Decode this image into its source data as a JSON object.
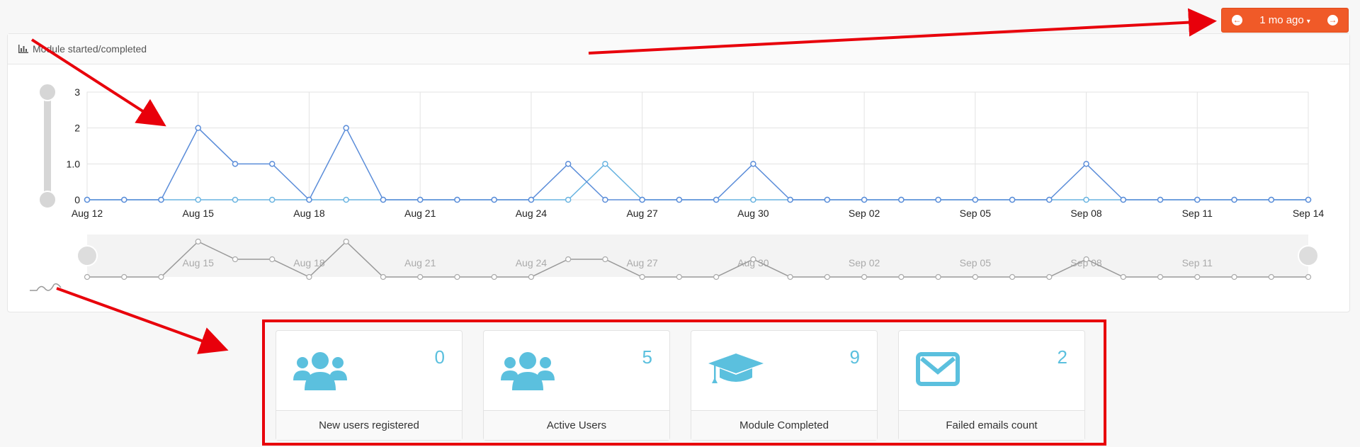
{
  "toolbar": {
    "range_label": "1 mo ago"
  },
  "panel": {
    "title": "Module started/completed"
  },
  "chart_data": {
    "type": "line",
    "title": "Module started/completed",
    "x": [
      "Aug 12",
      "Aug 13",
      "Aug 14",
      "Aug 15",
      "Aug 16",
      "Aug 17",
      "Aug 18",
      "Aug 19",
      "Aug 20",
      "Aug 21",
      "Aug 22",
      "Aug 23",
      "Aug 24",
      "Aug 25",
      "Aug 26",
      "Aug 27",
      "Aug 28",
      "Aug 29",
      "Aug 30",
      "Aug 31",
      "Sep 01",
      "Sep 02",
      "Sep 03",
      "Sep 04",
      "Sep 05",
      "Sep 06",
      "Sep 07",
      "Sep 08",
      "Sep 09",
      "Sep 10",
      "Sep 11",
      "Sep 12",
      "Sep 13",
      "Sep 14"
    ],
    "x_tick_labels": [
      "Aug 12",
      "Aug 15",
      "Aug 18",
      "Aug 21",
      "Aug 24",
      "Aug 27",
      "Aug 30",
      "Sep 02",
      "Sep 05",
      "Sep 08",
      "Sep 11",
      "Sep 14"
    ],
    "navigator_tick_labels": [
      "Aug 15",
      "Aug 18",
      "Aug 21",
      "Aug 24",
      "Aug 27",
      "Aug 30",
      "Sep 02",
      "Sep 05",
      "Sep 08",
      "Sep 11"
    ],
    "y_tick_labels": [
      "0",
      "1.0",
      "2",
      "3"
    ],
    "ylim": [
      0,
      3
    ],
    "grid": true,
    "series": [
      {
        "color": "#5b8dd9",
        "values": [
          0,
          0,
          0,
          2,
          1,
          1,
          0,
          2,
          0,
          0,
          0,
          0,
          0,
          1,
          0,
          0,
          0,
          0,
          1,
          0,
          0,
          0,
          0,
          0,
          0,
          0,
          0,
          1,
          0,
          0,
          0,
          0,
          0,
          0
        ]
      },
      {
        "color": "#68b3e0",
        "values": [
          0,
          0,
          0,
          0,
          0,
          0,
          0,
          0,
          0,
          0,
          0,
          0,
          0,
          0,
          1,
          0,
          0,
          0,
          0,
          0,
          0,
          0,
          0,
          0,
          0,
          0,
          0,
          0,
          0,
          0,
          0,
          0,
          0,
          0
        ]
      }
    ]
  },
  "stats": [
    {
      "count": "0",
      "label": "New users registered",
      "icon": "users-icon"
    },
    {
      "count": "5",
      "label": "Active Users",
      "icon": "users-icon"
    },
    {
      "count": "9",
      "label": "Module Completed",
      "icon": "graduation-cap-icon"
    },
    {
      "count": "2",
      "label": "Failed emails count",
      "icon": "envelope-icon"
    }
  ]
}
